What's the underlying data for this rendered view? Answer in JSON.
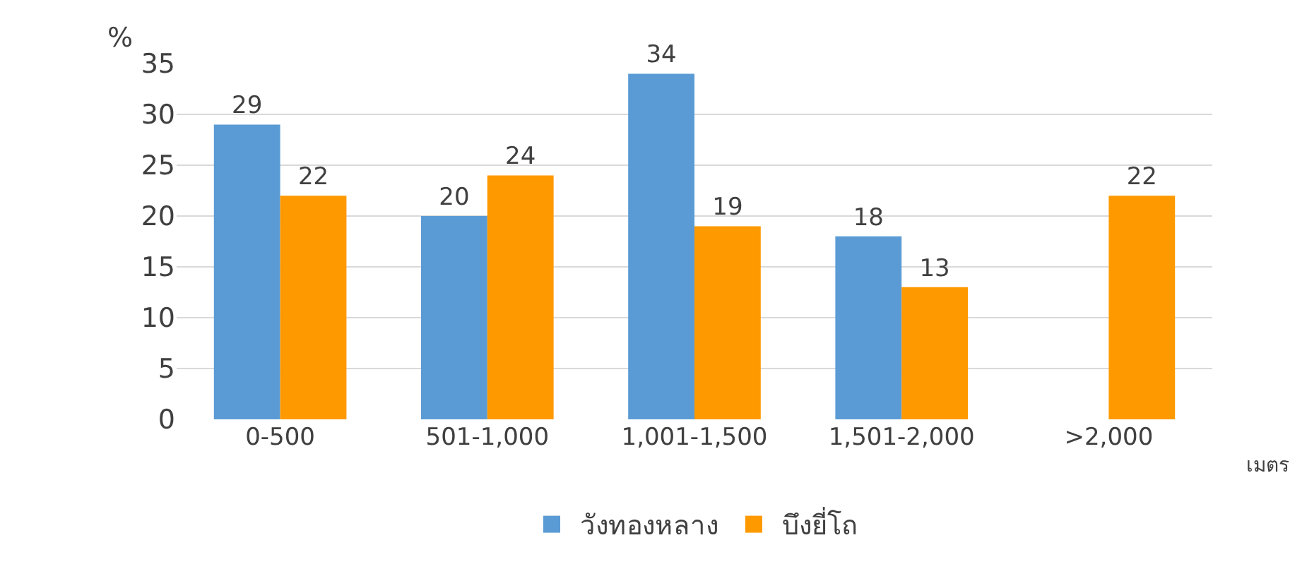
{
  "chart_data": {
    "type": "bar",
    "ylabel": "%",
    "xlabel": "เมตร",
    "categories": [
      "0-500",
      "501-1,000",
      "1,001-1,500",
      "1,501-2,000",
      ">2,000"
    ],
    "series": [
      {
        "name": "วังทองหลาง",
        "color": "#5b9bd5",
        "values": [
          29,
          20,
          34,
          18,
          null
        ]
      },
      {
        "name": "บึงยี่โถ",
        "color": "#ff9900",
        "values": [
          22,
          24,
          19,
          13,
          22
        ]
      }
    ],
    "ylim": [
      0,
      35
    ],
    "yticks": [
      0,
      5,
      10,
      15,
      20,
      25,
      30,
      35
    ],
    "grid": "y",
    "legend": "bottom",
    "data_labels": true
  }
}
